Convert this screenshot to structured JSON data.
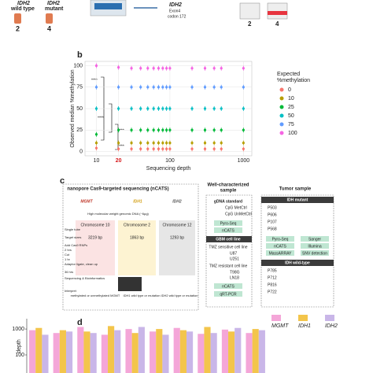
{
  "panel_a": {
    "left_tube": {
      "gene": "IDH2",
      "label": "wild type",
      "number": "2"
    },
    "right_tube": {
      "gene": "IDH2",
      "label": "mutant",
      "number": "4"
    },
    "target": {
      "gene": "IDH2",
      "exon": "Exon4",
      "codon": "codon 172"
    },
    "result_numbers": [
      "2",
      "4"
    ]
  },
  "panel_labels": [
    "b",
    "c",
    "d"
  ],
  "chart_data": [
    {
      "type": "scatter",
      "x_label": "Sequencing depth",
      "y_label": "Observed median %methylation",
      "legend_title": [
        "Expected",
        "%methylation"
      ],
      "legend": "right",
      "x": [
        10,
        20,
        30,
        40,
        50,
        60,
        70,
        80,
        90,
        100,
        200,
        300,
        400,
        500,
        1000
      ],
      "series": [
        {
          "name": "0",
          "color": "#f8766d",
          "values": [
            4,
            3,
            3,
            3,
            3,
            3,
            3,
            3,
            3,
            3,
            3,
            3,
            3,
            3,
            3
          ]
        },
        {
          "name": "10",
          "color": "#b79f00",
          "values": [
            10,
            10,
            10,
            10,
            10,
            10,
            10,
            10,
            10,
            10,
            10,
            10,
            10,
            10,
            10
          ]
        },
        {
          "name": "25",
          "color": "#00ba38",
          "values": [
            20,
            25,
            25,
            25,
            25,
            25,
            25,
            25,
            25,
            25,
            25,
            25,
            25,
            25,
            25
          ]
        },
        {
          "name": "50",
          "color": "#00bfc4",
          "values": [
            50,
            50,
            50,
            50,
            50,
            50,
            50,
            50,
            50,
            50,
            50,
            50,
            50,
            50,
            50
          ]
        },
        {
          "name": "75",
          "color": "#619cff",
          "values": [
            75,
            75,
            75,
            75,
            75,
            75,
            75,
            75,
            75,
            75,
            75,
            75,
            75,
            75,
            75
          ]
        },
        {
          "name": "100",
          "color": "#f564e3",
          "values": [
            100,
            98,
            97,
            97,
            97,
            97,
            97,
            97,
            97,
            97,
            97,
            97,
            97,
            97,
            97
          ]
        }
      ],
      "xlog": true,
      "xlim": [
        7,
        1300
      ],
      "xticks": [
        10,
        20,
        100,
        1000
      ],
      "ylim": [
        -5,
        105
      ],
      "yticks": [
        0,
        25,
        50,
        75,
        100
      ],
      "grid": true,
      "annotations": [
        "****",
        "****",
        "****",
        "****"
      ]
    },
    {
      "type": "bar",
      "y_label": "depth",
      "ylog": true,
      "categories": [
        null,
        null,
        null,
        null,
        null,
        null,
        null,
        null,
        null,
        null
      ],
      "series": [
        {
          "name": "MGMT",
          "color": "#f4a6d8",
          "values": [
            900,
            700,
            1200,
            600,
            1000,
            800,
            1100,
            650,
            950,
            700
          ]
        },
        {
          "name": "IDH1",
          "color": "#f3c54b",
          "values": [
            1100,
            900,
            800,
            1300,
            700,
            1000,
            900,
            1200,
            800,
            1000
          ]
        },
        {
          "name": "IDH2",
          "color": "#c9b6e8",
          "values": [
            600,
            800,
            700,
            900,
            1200,
            600,
            800,
            700,
            1100,
            900
          ]
        }
      ],
      "ylim": [
        20,
        2500
      ],
      "yticks": [
        100,
        1000
      ],
      "legend": "top-right"
    }
  ],
  "panel_c": {
    "title": "nanopore Cas9-targeted sequencing (nCATS)",
    "genes": [
      "MGMT",
      "IDH1",
      "IDH2"
    ],
    "chromosomes": [
      "Chromosome 10",
      "Chromosome 2",
      "Chromosome 12"
    ],
    "sizes": [
      "3219 bp",
      "1863 bp",
      "1293 bp"
    ],
    "input": "High molecular weight genomic DNA (~6µg)",
    "steps": [
      "Single tube",
      "Target sizes",
      "Add Cas9 RNPs",
      "Cut",
      "Adaptor ligate, clean up",
      "Sequencing & Bioinformatics",
      "Interpret"
    ],
    "times": [
      "2 hrs",
      "1 hr",
      "36 hrs"
    ],
    "outcomes": [
      "methylated or unmethylated MGMT",
      "IDH1 wild type or mutation",
      "IDH2 wild type or mutation"
    ],
    "middle": {
      "title": [
        "Well-characterized",
        "sample"
      ],
      "gdna": "gDNA standard",
      "gdna_items": [
        "CpG MetCtrl",
        "CpG UnMetCtrl"
      ],
      "cell_line": "GBM cell line",
      "sensitive": "TMZ sensitive cell line",
      "sensitive_lines": [
        "U87",
        "U251"
      ],
      "resistant": "TMZ resistant cell line",
      "resistant_lines": [
        "T98G",
        "LN18"
      ],
      "methods": [
        "Pyro-Seq",
        "nCATS",
        "qRT-PCR"
      ]
    },
    "right": {
      "title": "Tumor sample",
      "mutant": "IDH mutant",
      "wildtype": "IDH wild-type",
      "mutant_samples": [
        "P503",
        "P606",
        "P107",
        "P568"
      ],
      "wild_samples": [
        "P785",
        "P712",
        "P816",
        "P722"
      ],
      "methods": [
        "Pyro-Seq",
        "nCATS",
        "MassARRAY",
        "Sanger",
        "Illumina",
        "SNV detection"
      ]
    }
  }
}
